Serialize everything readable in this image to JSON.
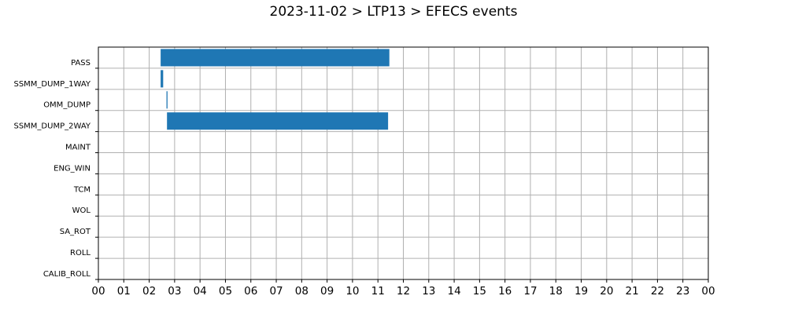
{
  "chart_data": {
    "type": "bar",
    "orientation": "horizontal",
    "title": "2023-11-02 > LTP13 > EFECS events",
    "xlabel": "",
    "ylabel": "",
    "categories": [
      "PASS",
      "SSMM_DUMP_1WAY",
      "OMM_DUMP",
      "SSMM_DUMP_2WAY",
      "MAINT",
      "ENG_WIN",
      "TCM",
      "WOL",
      "SA_ROT",
      "ROLL",
      "CALIB_ROLL"
    ],
    "events": [
      {
        "category": "PASS",
        "start": 2.45,
        "end": 11.45
      },
      {
        "category": "SSMM_DUMP_1WAY",
        "start": 2.45,
        "end": 2.55
      },
      {
        "category": "OMM_DUMP",
        "start": 2.68,
        "end": 2.72
      },
      {
        "category": "SSMM_DUMP_2WAY",
        "start": 2.7,
        "end": 11.4
      }
    ],
    "x_tick_labels": [
      "00",
      "01",
      "02",
      "03",
      "04",
      "05",
      "06",
      "07",
      "08",
      "09",
      "10",
      "11",
      "12",
      "13",
      "14",
      "15",
      "16",
      "17",
      "18",
      "19",
      "20",
      "21",
      "22",
      "23",
      "00"
    ],
    "xlim": [
      0,
      24
    ],
    "grid": true,
    "bar_color": "#1f77b4"
  }
}
